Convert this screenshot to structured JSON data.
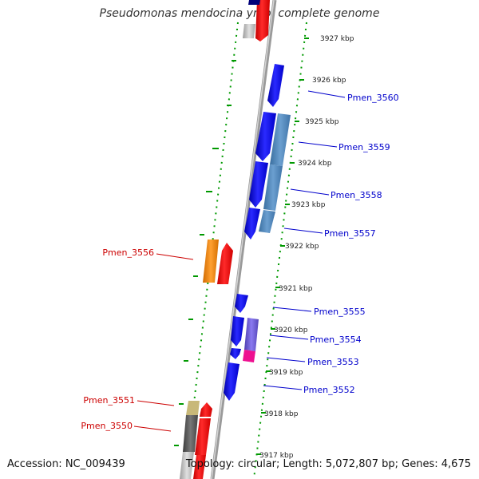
{
  "header": {
    "title": "Pseudomonas mendocina ymp, complete genome"
  },
  "footer": {
    "accession": "Accession: NC_009439",
    "topology": "Topology: circular; Length: 5,072,807 bp; Genes: 4,675"
  },
  "scale": {
    "ticks": [
      "3927 kbp",
      "3926 kbp",
      "3925 kbp",
      "3924 kbp",
      "3923 kbp",
      "3922 kbp",
      "3921 kbp",
      "3920 kbp",
      "3919 kbp",
      "3918 kbp",
      "3917 kbp"
    ]
  },
  "genes": {
    "right": [
      "Pmen_3560",
      "Pmen_3559",
      "Pmen_3558",
      "Pmen_3557",
      "Pmen_3555",
      "Pmen_3554",
      "Pmen_3553",
      "Pmen_3552"
    ],
    "left": [
      "Pmen_3556",
      "Pmen_3551",
      "Pmen_3550"
    ]
  },
  "colors": {
    "forward_label": "#0000cc",
    "reverse_label": "#cc0000",
    "tick": "#009900",
    "backbone": "#888888"
  }
}
